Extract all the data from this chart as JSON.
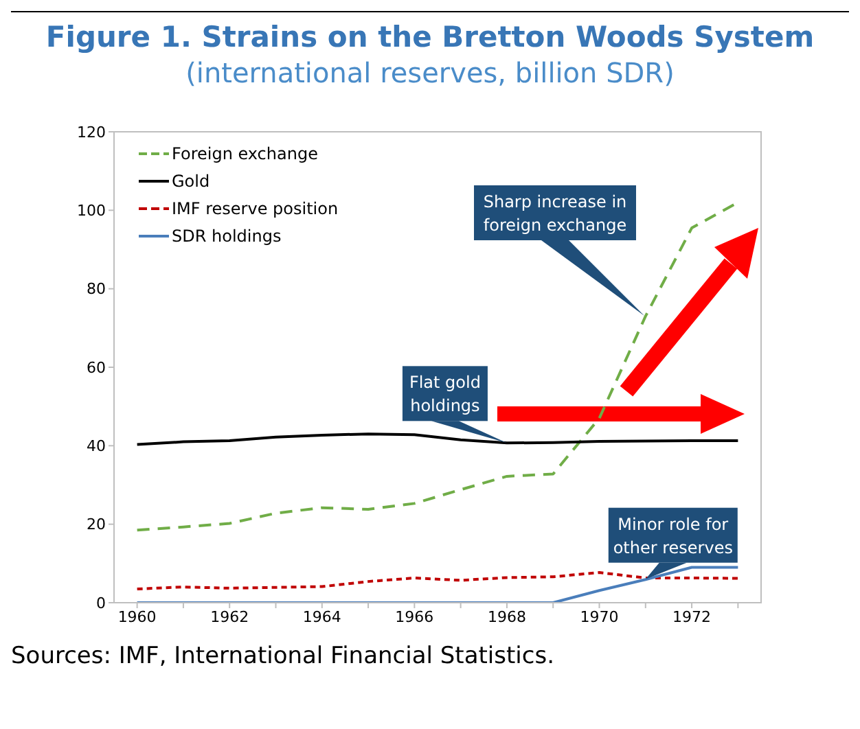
{
  "chart_data": {
    "type": "line",
    "title": "Figure 1. Strains on the Bretton Woods System",
    "subtitle": "(international reserves, billion SDR)",
    "x": [
      1960,
      1961,
      1962,
      1963,
      1964,
      1965,
      1966,
      1967,
      1968,
      1969,
      1970,
      1971,
      1972,
      1973
    ],
    "series": [
      {
        "name": "Foreign exchange",
        "color": "#70ad47",
        "line_style": "dashed",
        "values": [
          18.5,
          19.3,
          20.2,
          22.8,
          24.2,
          23.8,
          25.3,
          28.8,
          32.2,
          32.8,
          47,
          73,
          95.5,
          102
        ]
      },
      {
        "name": "Gold",
        "color": "#000000",
        "line_style": "solid",
        "values": [
          40.3,
          41,
          41.3,
          42.2,
          42.7,
          43,
          42.8,
          41.5,
          40.7,
          40.8,
          41.1,
          41.2,
          41.3,
          41.3
        ]
      },
      {
        "name": "IMF reserve position",
        "color": "#c00000",
        "line_style": "dotted",
        "values": [
          3.5,
          4,
          3.7,
          3.9,
          4.1,
          5.4,
          6.3,
          5.7,
          6.4,
          6.6,
          7.7,
          6.3,
          6.3,
          6.2
        ]
      },
      {
        "name": "SDR holdings",
        "color": "#4a7ebb",
        "line_style": "solid",
        "values": [
          0,
          0,
          0,
          0,
          0,
          0,
          0,
          0,
          0,
          0,
          3.1,
          5.9,
          9,
          9
        ]
      }
    ],
    "xlim": [
      1959.5,
      1973.5
    ],
    "xticks": [
      1960,
      {
        "value": 1961,
        "label": null
      },
      1962,
      {
        "value": 1963,
        "label": null
      },
      1964,
      {
        "value": 1965,
        "label": null
      },
      1966,
      {
        "value": 1967,
        "label": null
      },
      1968,
      {
        "value": 1969,
        "label": null
      },
      1970,
      {
        "value": 1971,
        "label": null
      },
      1972,
      {
        "value": 1973,
        "label": null
      }
    ],
    "ylim": [
      0,
      120
    ],
    "yticks": [
      0,
      20,
      40,
      60,
      80,
      100,
      120
    ],
    "grid": false,
    "legend": "top left",
    "marker": "none",
    "annotations": [
      "Sharp increase in foreign exchange",
      {
        "text": "Flat gold holdings",
        "x": 1968,
        "y": 40.7
      },
      {
        "text": "Minor role for other reserves",
        "x": 1971,
        "y": 6
      },
      "Sources: IMF, International Financial Statistics."
    ]
  }
}
